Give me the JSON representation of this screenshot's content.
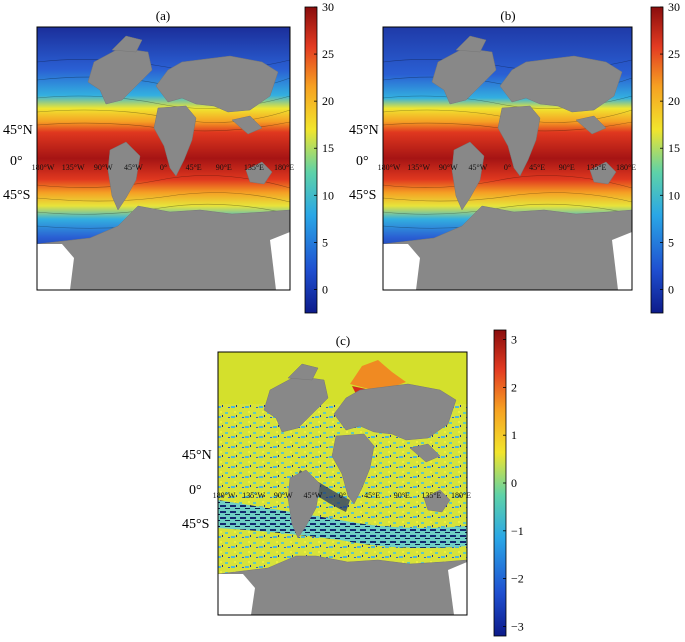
{
  "chart_data": [
    {
      "type": "heatmap",
      "title": "(a)",
      "lat_labels": [
        "45°N",
        "0°",
        "45°S"
      ],
      "lon_labels": [
        "180°W",
        "135°W",
        "90°W",
        "45°W",
        "0°",
        "45°E",
        "90°E",
        "135°E",
        "180°E"
      ],
      "colorbar": {
        "ticks": [
          30,
          25,
          20,
          15,
          10,
          5,
          0
        ],
        "range": [
          -2.5,
          30
        ]
      },
      "colormap": [
        "#0d1b8a",
        "#1f4fd0",
        "#2aa7e6",
        "#5ed2a8",
        "#f2e52c",
        "#f6a122",
        "#e33b22",
        "#8a0d0d"
      ]
    },
    {
      "type": "heatmap",
      "title": "(b)",
      "lat_labels": [
        "45°N",
        "0°",
        "45°S"
      ],
      "lon_labels": [
        "180°W",
        "135°W",
        "90°W",
        "45°W",
        "0°",
        "45°E",
        "90°E",
        "135°E",
        "180°E"
      ],
      "colorbar": {
        "ticks": [
          30,
          25,
          20,
          15,
          10,
          5,
          0
        ],
        "range": [
          -2.5,
          30
        ]
      },
      "colormap": [
        "#0d1b8a",
        "#1f4fd0",
        "#2aa7e6",
        "#5ed2a8",
        "#f2e52c",
        "#f6a122",
        "#e33b22",
        "#8a0d0d"
      ]
    },
    {
      "type": "heatmap",
      "title": "(c)",
      "lat_labels": [
        "45°N",
        "0°",
        "45°S"
      ],
      "lon_labels": [
        "180°W",
        "135°W",
        "90°W",
        "45°W",
        "0°",
        "45°E",
        "90°E",
        "135°E",
        "180°E"
      ],
      "colorbar": {
        "ticks": [
          3,
          2,
          1,
          0,
          -1,
          -2,
          -3
        ],
        "range": [
          -3.2,
          3.2
        ]
      },
      "colormap": [
        "#0d1b8a",
        "#1f4fd0",
        "#2aa7e6",
        "#5ed2a8",
        "#f2e52c",
        "#f6a122",
        "#e33b22",
        "#8a0d0d"
      ]
    }
  ]
}
